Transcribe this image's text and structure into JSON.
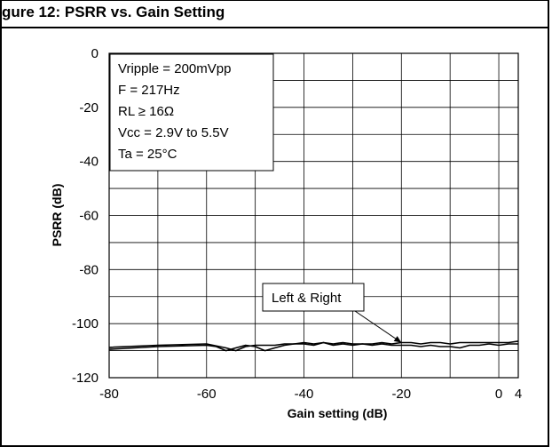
{
  "title": "gure 12: PSRR vs. Gain Setting",
  "chart_data": {
    "type": "line",
    "title": "gure 12: PSRR vs. Gain Setting",
    "xlabel": "Gain setting (dB)",
    "ylabel": "PSRR (dB)",
    "xlim": [
      -80,
      4
    ],
    "ylim": [
      -120,
      0
    ],
    "grid": true,
    "x_ticks": [
      -80,
      -60,
      -40,
      -20,
      0,
      4
    ],
    "x_tick_labels": [
      "-80",
      "-60",
      "-40",
      "-20",
      "0",
      "4"
    ],
    "y_ticks": [
      0,
      -20,
      -40,
      -60,
      -80,
      -100,
      -120
    ],
    "y_tick_labels": [
      "0",
      "-20",
      "-40",
      "-60",
      "-80",
      "-100",
      "-120"
    ],
    "conditions": [
      "Vripple = 200mVpp",
      "F = 217Hz",
      "RL ≥ 16Ω",
      "Vcc = 2.9V to 5.5V",
      "Ta = 25°C"
    ],
    "series": [
      {
        "name": "Left & Right",
        "x": [
          -80,
          -70,
          -60,
          -56,
          -54,
          -52,
          -50,
          -48,
          -46,
          -44,
          -42,
          -40,
          -38,
          -36,
          -34,
          -32,
          -30,
          -28,
          -26,
          -24,
          -22,
          -20,
          -18,
          -16,
          -14,
          -12,
          -10,
          -8,
          -6,
          -4,
          -2,
          0,
          2,
          4
        ],
        "y": [
          -108.8,
          -108.0,
          -107.5,
          -109.0,
          -110.0,
          -108.5,
          -108.0,
          -108.0,
          -108.0,
          -107.5,
          -107.5,
          -107.0,
          -107.5,
          -107.0,
          -107.5,
          -107.0,
          -107.5,
          -107.5,
          -107.5,
          -107.0,
          -107.5,
          -107.0,
          -107.0,
          -107.5,
          -107.0,
          -107.0,
          -107.5,
          -107.0,
          -107.0,
          -107.0,
          -107.0,
          -107.0,
          -107.0,
          -106.5
        ]
      },
      {
        "name": "",
        "x": [
          -80,
          -70,
          -60,
          -58,
          -56,
          -54,
          -52,
          -50,
          -48,
          -46,
          -44,
          -42,
          -40,
          -38,
          -36,
          -34,
          -32,
          -30,
          -28,
          -26,
          -24,
          -22,
          -20,
          -18,
          -16,
          -14,
          -12,
          -10,
          -8,
          -6,
          -4,
          -2,
          0,
          2,
          4
        ],
        "y": [
          -109.5,
          -108.5,
          -108.0,
          -108.5,
          -110.0,
          -109.0,
          -108.0,
          -108.5,
          -110.0,
          -109.0,
          -108.0,
          -107.5,
          -107.5,
          -108.0,
          -107.0,
          -108.0,
          -107.5,
          -108.0,
          -107.5,
          -108.0,
          -107.5,
          -108.0,
          -108.0,
          -108.0,
          -108.5,
          -108.0,
          -108.5,
          -108.5,
          -109.0,
          -108.0,
          -108.0,
          -107.5,
          -108.0,
          -107.5,
          -107.5
        ]
      }
    ],
    "annotations": [
      {
        "text": "Left & Right",
        "target_x": -20,
        "target_y": -107
      }
    ]
  }
}
